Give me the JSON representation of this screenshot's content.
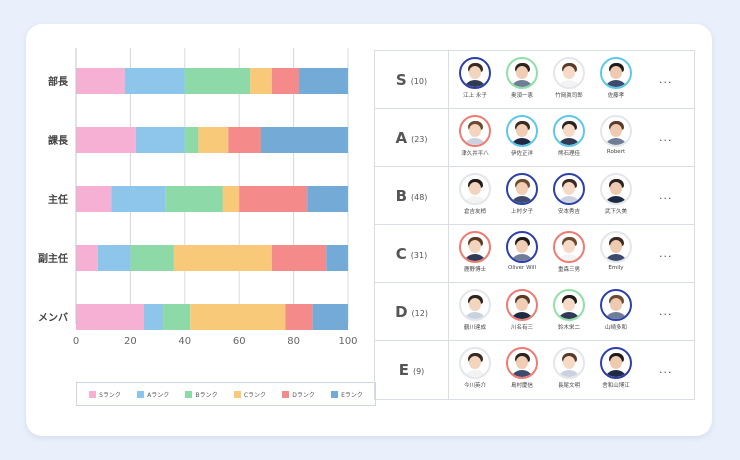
{
  "colors": {
    "S": "#f5b0d4",
    "A": "#8ec5ea",
    "B": "#8ed9a8",
    "C": "#f9c97a",
    "D": "#f48a8a",
    "E": "#74aad6",
    "avatar_blue": "#2d3fa8",
    "avatar_green": "#8fe0a6",
    "avatar_cyan": "#5ec8ea",
    "avatar_red": "#ef7b72",
    "avatar_plain": "#e3e6ea"
  },
  "chart_data": {
    "type": "bar",
    "orientation": "horizontal",
    "stacked": true,
    "categories": [
      "部長",
      "課長",
      "主任",
      "副主任",
      "メンバ"
    ],
    "series": [
      {
        "name": "Sランク",
        "values": [
          18,
          22,
          13,
          8,
          25
        ]
      },
      {
        "name": "Aランク",
        "values": [
          22,
          18,
          20,
          12,
          7
        ]
      },
      {
        "name": "Bランク",
        "values": [
          24,
          5,
          21,
          16,
          10
        ]
      },
      {
        "name": "Cランク",
        "values": [
          8,
          11,
          6,
          36,
          35
        ]
      },
      {
        "name": "Dランク",
        "values": [
          10,
          12,
          25,
          20,
          10
        ]
      },
      {
        "name": "Eランク",
        "values": [
          18,
          32,
          15,
          8,
          13
        ]
      }
    ],
    "xlim": [
      0,
      100
    ],
    "xticks": [
      "0",
      "20",
      "40",
      "60",
      "80",
      "100"
    ],
    "grid": true,
    "legend": "bottom"
  },
  "legend": [
    "Sランク",
    "Aランク",
    "Bランク",
    "Cランク",
    "Dランク",
    "Eランク"
  ],
  "ranks": [
    {
      "letter": "S",
      "count": "(10)",
      "more": "...",
      "people": [
        {
          "name": "江上 永子",
          "ring": "avatar_blue"
        },
        {
          "name": "奥須一恵",
          "ring": "avatar_green"
        },
        {
          "name": "竹岡眞司郎",
          "ring": "avatar_plain"
        },
        {
          "name": "佐藤孝",
          "ring": "avatar_cyan"
        }
      ]
    },
    {
      "letter": "A",
      "count": "(23)",
      "more": "...",
      "people": [
        {
          "name": "津久井平八",
          "ring": "avatar_red"
        },
        {
          "name": "伊佐正洋",
          "ring": "avatar_cyan"
        },
        {
          "name": "熊石理佳",
          "ring": "avatar_cyan"
        },
        {
          "name": "Robert",
          "ring": "avatar_plain"
        }
      ]
    },
    {
      "letter": "B",
      "count": "(48)",
      "more": "...",
      "people": [
        {
          "name": "倉吉友梢",
          "ring": "avatar_plain"
        },
        {
          "name": "上村夕子",
          "ring": "avatar_blue"
        },
        {
          "name": "安本秀吉",
          "ring": "avatar_blue"
        },
        {
          "name": "武下久美",
          "ring": "avatar_plain"
        }
      ]
    },
    {
      "letter": "C",
      "count": "(31)",
      "more": "...",
      "people": [
        {
          "name": "鹿野博士",
          "ring": "avatar_red"
        },
        {
          "name": "Oliver Will",
          "ring": "avatar_blue"
        },
        {
          "name": "重森三男",
          "ring": "avatar_red"
        },
        {
          "name": "Emily",
          "ring": "avatar_plain"
        }
      ]
    },
    {
      "letter": "D",
      "count": "(12)",
      "more": "...",
      "people": [
        {
          "name": "鶴川達成",
          "ring": "avatar_plain"
        },
        {
          "name": "川名有三",
          "ring": "avatar_red"
        },
        {
          "name": "鈴木栄二",
          "ring": "avatar_green"
        },
        {
          "name": "山崎多和",
          "ring": "avatar_blue"
        }
      ]
    },
    {
      "letter": "E",
      "count": "(9)",
      "more": "...",
      "people": [
        {
          "name": "今川英介",
          "ring": "avatar_plain"
        },
        {
          "name": "島村慶信",
          "ring": "avatar_red"
        },
        {
          "name": "長尾文明",
          "ring": "avatar_plain"
        },
        {
          "name": "舎和山博江",
          "ring": "avatar_blue"
        }
      ]
    }
  ]
}
